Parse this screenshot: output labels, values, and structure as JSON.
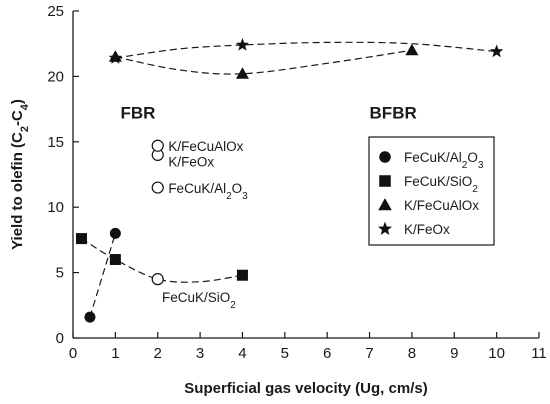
{
  "chart_data": {
    "type": "scatter",
    "xlabel": "Superficial gas velocity (Ug, cm/s)",
    "ylabel": {
      "main": "Yield to olefin (C",
      "sub1": "2",
      "mid": "-C",
      "sub2": "4",
      "end": ")"
    },
    "xlim": [
      0,
      11
    ],
    "ylim": [
      0,
      25
    ],
    "x_ticks": [
      0,
      1,
      2,
      3,
      4,
      5,
      6,
      7,
      8,
      9,
      10,
      11
    ],
    "y_ticks": [
      0,
      5,
      10,
      15,
      20,
      25
    ],
    "grid": false,
    "series": [
      {
        "name": "FeCuK/Al2O3",
        "marker": "circle-filled",
        "points": [
          [
            0.4,
            1.6
          ],
          [
            1.0,
            8.0
          ]
        ]
      },
      {
        "name": "FeCuK/SiO2",
        "marker": "square-filled",
        "points": [
          [
            0.2,
            7.6
          ],
          [
            1.0,
            6.0
          ],
          [
            4.0,
            4.8
          ]
        ]
      },
      {
        "name": "K/FeCuAlOx",
        "marker": "triangle-filled",
        "points": [
          [
            1.0,
            21.5
          ],
          [
            4.0,
            20.2
          ],
          [
            8.0,
            22.0
          ]
        ]
      },
      {
        "name": "K/FeOx",
        "marker": "star-filled",
        "points": [
          [
            1.0,
            21.4
          ],
          [
            4.0,
            22.4
          ],
          [
            10.0,
            21.9
          ]
        ]
      }
    ],
    "fbr_points": [
      {
        "marker": "circle-open",
        "x": 2.0,
        "y": 4.5
      },
      {
        "marker": "circle-open",
        "x": 2.0,
        "y": 11.5
      },
      {
        "marker": "circle-open",
        "x": 2.0,
        "y": 14.0
      },
      {
        "marker": "circle-open",
        "x": 2.0,
        "y": 14.7
      }
    ],
    "fits": [
      {
        "points": [
          [
            0.4,
            1.6
          ],
          [
            0.7,
            4.8
          ],
          [
            1.0,
            8.0
          ]
        ]
      },
      {
        "points": [
          [
            0.2,
            7.6
          ],
          [
            1.0,
            6.0
          ],
          [
            2.0,
            4.5
          ],
          [
            3.0,
            4.3
          ],
          [
            4.0,
            4.8
          ]
        ]
      },
      {
        "points": [
          [
            1.0,
            21.5
          ],
          [
            2.5,
            20.5
          ],
          [
            4.0,
            20.2
          ],
          [
            6.0,
            21.0
          ],
          [
            8.0,
            22.0
          ]
        ]
      },
      {
        "points": [
          [
            1.0,
            21.4
          ],
          [
            2.5,
            22.1
          ],
          [
            4.0,
            22.4
          ],
          [
            6.0,
            22.6
          ],
          [
            8.0,
            22.5
          ],
          [
            10.0,
            21.9
          ]
        ]
      }
    ],
    "group_labels": {
      "fbr": "FBR",
      "bfbr": "BFBR"
    },
    "annotations": {
      "k_fecualox": "K/FeCuAlOx",
      "k_feox": "K/FeOx",
      "fecuk_al2o3": {
        "main": "FeCuK/Al",
        "sub1": "2",
        "mid": "O",
        "sub2": "3"
      },
      "fecuk_sio2": {
        "main": "FeCuK/SiO",
        "sub1": "2"
      }
    },
    "legend": {
      "position": "right",
      "entries": [
        {
          "marker": "circle-filled",
          "main": "FeCuK/Al",
          "sub1": "2",
          "mid": "O",
          "sub2": "3"
        },
        {
          "marker": "square-filled",
          "main": "FeCuK/SiO",
          "sub1": "2",
          "mid": "",
          "sub2": ""
        },
        {
          "marker": "triangle-filled",
          "main": "K/FeCuAlOx",
          "sub1": "",
          "mid": "",
          "sub2": ""
        },
        {
          "marker": "star-filled",
          "main": "K/FeOx",
          "sub1": "",
          "mid": "",
          "sub2": ""
        }
      ]
    }
  }
}
